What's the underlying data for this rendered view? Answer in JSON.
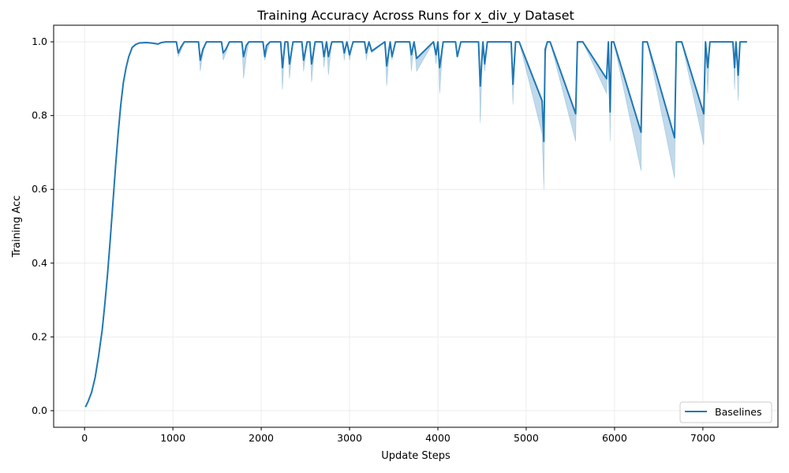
{
  "chart_data": {
    "type": "line",
    "title": "Training Accuracy Across Runs for x_div_y Dataset",
    "xlabel": "Update Steps",
    "ylabel": "Training Acc",
    "xlim": [
      -350,
      7850
    ],
    "ylim": [
      -0.045,
      1.045
    ],
    "xticks": [
      0,
      1000,
      2000,
      3000,
      4000,
      5000,
      6000,
      7000
    ],
    "yticks": [
      0.0,
      0.2,
      0.4,
      0.6,
      0.8,
      1.0
    ],
    "grid": true,
    "legend": {
      "position": "lower-right",
      "entries": [
        "Baselines"
      ]
    },
    "colors": {
      "line": "#1f77b4",
      "band": "#1f77b4",
      "grid": "#e8e8e8",
      "axis": "#000000"
    },
    "series": [
      {
        "name": "Baselines",
        "x": [
          10,
          40,
          80,
          120,
          160,
          200,
          230,
          260,
          290,
          320,
          350,
          380,
          410,
          440,
          470,
          500,
          540,
          580,
          620,
          700,
          780,
          830,
          870,
          920,
          1040,
          1060,
          1090,
          1130,
          1290,
          1310,
          1340,
          1380,
          1550,
          1570,
          1600,
          1640,
          1780,
          1800,
          1830,
          1860,
          2020,
          2040,
          2060,
          2100,
          2220,
          2240,
          2270,
          2300,
          2320,
          2360,
          2460,
          2480,
          2520,
          2550,
          2570,
          2610,
          2690,
          2710,
          2740,
          2760,
          2800,
          2920,
          2940,
          2970,
          3000,
          3040,
          3170,
          3190,
          3220,
          3250,
          3400,
          3420,
          3460,
          3480,
          3520,
          3680,
          3700,
          3730,
          3760,
          3950,
          3980,
          4000,
          4020,
          4060,
          4200,
          4220,
          4260,
          4460,
          4480,
          4510,
          4530,
          4560,
          4830,
          4850,
          4880,
          4920,
          5180,
          5200,
          5215,
          5240,
          5270,
          5560,
          5580,
          5610,
          5640,
          5910,
          5930,
          5950,
          5965,
          5990,
          6300,
          6320,
          6340,
          6370,
          6680,
          6700,
          6720,
          6760,
          7010,
          7030,
          7055,
          7080,
          7340,
          7360,
          7375,
          7400,
          7420,
          7460,
          7500
        ],
        "values": [
          0.01,
          0.025,
          0.05,
          0.09,
          0.15,
          0.22,
          0.29,
          0.37,
          0.46,
          0.56,
          0.66,
          0.75,
          0.83,
          0.89,
          0.93,
          0.96,
          0.985,
          0.993,
          0.997,
          0.998,
          0.996,
          0.994,
          0.998,
          1.0,
          1.0,
          0.97,
          0.985,
          1.0,
          1.0,
          0.95,
          0.98,
          1.0,
          1.0,
          0.97,
          0.98,
          1.0,
          1.0,
          0.96,
          0.99,
          1.0,
          1.0,
          0.96,
          0.99,
          1.0,
          1.0,
          0.93,
          1.0,
          1.0,
          0.94,
          1.0,
          1.0,
          0.95,
          1.0,
          1.0,
          0.94,
          1.0,
          1.0,
          0.96,
          1.0,
          0.96,
          1.0,
          1.0,
          0.97,
          1.0,
          0.965,
          1.0,
          1.0,
          0.97,
          1.0,
          0.975,
          1.0,
          0.935,
          1.0,
          0.96,
          1.0,
          1.0,
          0.965,
          1.0,
          0.955,
          1.0,
          0.965,
          1.0,
          0.93,
          1.0,
          1.0,
          0.96,
          1.0,
          1.0,
          0.88,
          1.0,
          0.94,
          1.0,
          1.0,
          0.885,
          1.0,
          1.0,
          0.84,
          0.73,
          0.98,
          1.0,
          1.0,
          0.805,
          1.0,
          1.0,
          1.0,
          0.9,
          1.0,
          0.81,
          1.0,
          1.0,
          0.755,
          1.0,
          1.0,
          1.0,
          0.74,
          1.0,
          1.0,
          1.0,
          0.805,
          1.0,
          0.93,
          1.0,
          1.0,
          0.93,
          1.0,
          0.91,
          1.0,
          1.0,
          1.0
        ],
        "lower": [
          0.01,
          0.025,
          0.05,
          0.09,
          0.15,
          0.22,
          0.29,
          0.37,
          0.46,
          0.56,
          0.66,
          0.75,
          0.83,
          0.89,
          0.93,
          0.96,
          0.985,
          0.993,
          0.997,
          0.998,
          0.996,
          0.994,
          0.998,
          1.0,
          1.0,
          0.96,
          0.975,
          1.0,
          1.0,
          0.92,
          0.97,
          1.0,
          1.0,
          0.95,
          0.97,
          1.0,
          1.0,
          0.9,
          0.96,
          1.0,
          1.0,
          0.95,
          0.97,
          1.0,
          1.0,
          0.87,
          1.0,
          1.0,
          0.9,
          1.0,
          1.0,
          0.92,
          1.0,
          1.0,
          0.89,
          1.0,
          1.0,
          0.93,
          1.0,
          0.91,
          1.0,
          1.0,
          0.95,
          1.0,
          0.95,
          1.0,
          1.0,
          0.95,
          1.0,
          0.97,
          1.0,
          0.88,
          1.0,
          0.95,
          1.0,
          1.0,
          0.92,
          1.0,
          0.92,
          1.0,
          0.94,
          1.0,
          0.86,
          1.0,
          1.0,
          0.96,
          1.0,
          1.0,
          0.78,
          1.0,
          0.92,
          1.0,
          1.0,
          0.83,
          1.0,
          1.0,
          0.75,
          0.6,
          0.96,
          1.0,
          1.0,
          0.73,
          1.0,
          1.0,
          1.0,
          0.86,
          1.0,
          0.73,
          1.0,
          1.0,
          0.65,
          1.0,
          1.0,
          1.0,
          0.63,
          1.0,
          1.0,
          1.0,
          0.72,
          1.0,
          0.86,
          1.0,
          1.0,
          0.87,
          1.0,
          0.84,
          1.0,
          1.0,
          1.0
        ]
      }
    ]
  }
}
